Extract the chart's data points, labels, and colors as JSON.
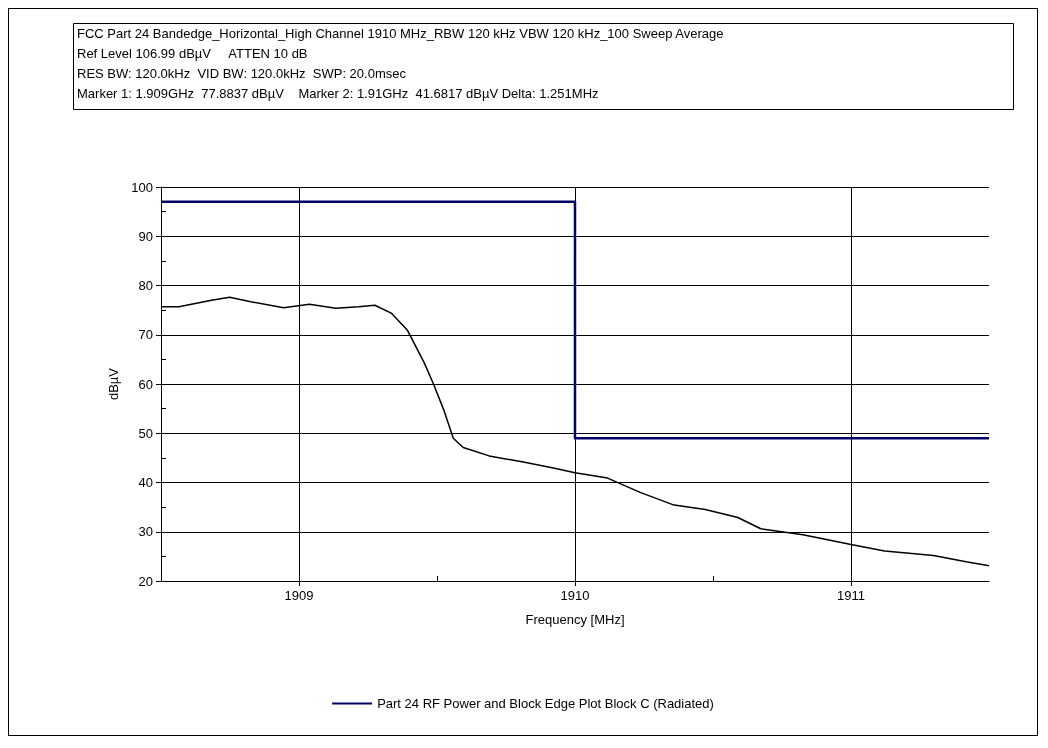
{
  "chart_data": {
    "type": "line",
    "title": "FCC Part 24 Bandedge_Horizontal_High Channel 1910 MHz_RBW 120 kHz VBW 120 kHz_100 Sweep Average",
    "annotations": [
      "Ref Level 106.99 dBµV     ATTEN 10 dB",
      "RES BW: 120.0kHz  VID BW: 120.0kHz  SWP: 20.0msec",
      "Marker 1: 1.909GHz  77.8837 dBµV    Marker 2: 1.91GHz  41.6817 dBµV Delta: 1.251MHz"
    ],
    "xlabel": "Frequency [MHz]",
    "ylabel": "dBµV",
    "xlim": [
      1908.5,
      1911.5
    ],
    "xticks": [
      1909,
      1910,
      1911,
      {
        "value": 1909.5,
        "label": null
      },
      {
        "value": 1910.5,
        "label": null
      }
    ],
    "ylim": [
      20,
      100
    ],
    "yticks": [
      20,
      30,
      40,
      50,
      60,
      70,
      80,
      90,
      100,
      {
        "value": 25,
        "label": null
      },
      {
        "value": 35,
        "label": null
      },
      {
        "value": 45,
        "label": null
      },
      {
        "value": 55,
        "label": null
      },
      {
        "value": 65,
        "label": null
      },
      {
        "value": 75,
        "label": null
      },
      {
        "value": 85,
        "label": null
      },
      {
        "value": 95,
        "label": null
      }
    ],
    "grid": true,
    "legend": "bottom",
    "marker": "none",
    "line_style": "solid",
    "series": [
      {
        "color": "#000000",
        "x": [
          1908.5,
          1908.565,
          1908.683,
          1908.749,
          1908.825,
          1908.944,
          1909.038,
          1909.133,
          1909.216,
          1909.275,
          1909.334,
          1909.393,
          1909.453,
          1909.488,
          1909.524,
          1909.559,
          1909.595,
          1909.689,
          1909.808,
          1909.926,
          1910,
          1910.118,
          1910.236,
          1910.354,
          1910.472,
          1910.59,
          1910.673,
          1910.826,
          1911,
          1911.122,
          1911.299,
          1911.417,
          1911.5
        ],
        "values": [
          75.7,
          75.7,
          77.0,
          77.6,
          76.7,
          75.5,
          76.2,
          75.4,
          75.7,
          76.0,
          74.4,
          70.9,
          64.4,
          59.9,
          54.8,
          49.0,
          47.1,
          45.4,
          44.2,
          42.9,
          42.0,
          40.9,
          38.0,
          35.5,
          34.5,
          32.9,
          30.6,
          29.4,
          27.4,
          26.1,
          25.2,
          23.9,
          23.1
        ]
      },
      {
        "type": "step",
        "name": "Part 24 RF Power and Block Edge Plot Block C (Radiated)",
        "color": "#000066",
        "x": [
          1908.5,
          1910,
          1911.5
        ],
        "values": [
          97,
          49,
          49
        ]
      }
    ]
  }
}
